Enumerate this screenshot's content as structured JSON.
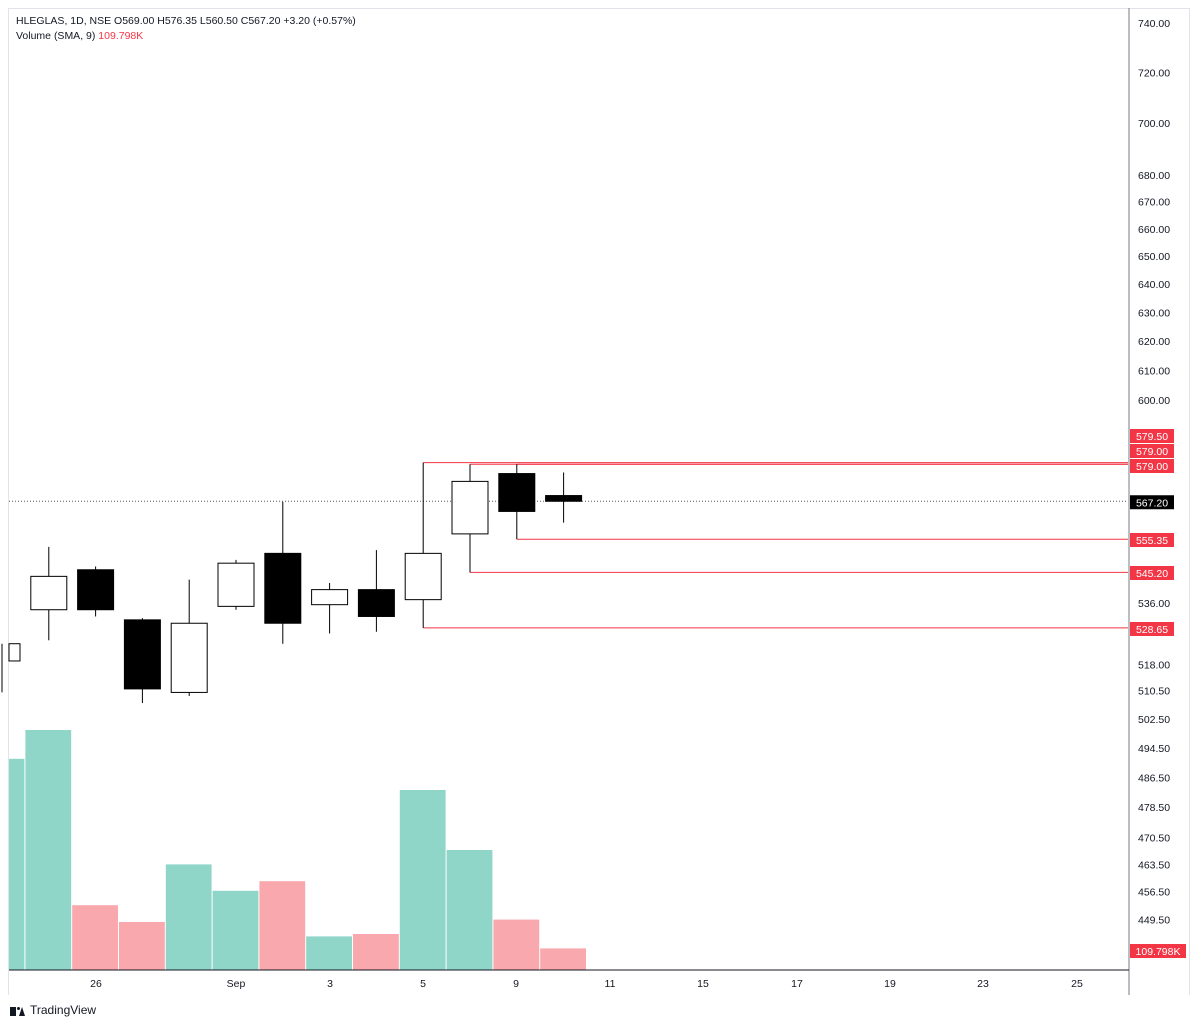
{
  "header": {
    "symbol_line": "HLEGLAS, 1D, NSE",
    "ohlc": [
      {
        "k": "O",
        "v": "569.00"
      },
      {
        "k": "H",
        "v": "576.35"
      },
      {
        "k": "L",
        "v": "560.50"
      },
      {
        "k": "C",
        "v": "567.20"
      }
    ],
    "change": "+3.20 (+0.57%)",
    "volume_label": "Volume (SMA, 9)",
    "volume_value": "109.798K"
  },
  "brand": "TradingView",
  "colors": {
    "up_volume": "#8fd6c9",
    "down_volume": "#f9a8ad",
    "level_line": "#f23645",
    "candle_down": "#000000",
    "candle_up": "#ffffff"
  },
  "chart_data": {
    "type": "candlestick",
    "price_axis": {
      "ticks": [
        "740.00",
        "720.00",
        "700.00",
        "680.00",
        "670.00",
        "660.00",
        "650.00",
        "640.00",
        "630.00",
        "620.00",
        "610.00",
        "600.00",
        "536.00",
        "518.00",
        "510.50",
        "502.50",
        "494.50",
        "486.50",
        "478.50",
        "470.50",
        "463.50",
        "456.50",
        "449.50"
      ],
      "scale": "log"
    },
    "time_axis": {
      "labels": [
        "26",
        "Sep",
        "3",
        "5",
        "9",
        "11",
        "15",
        "17",
        "19",
        "23",
        "25"
      ]
    },
    "candles": [
      {
        "o": 519.0,
        "h": 524.0,
        "l": 510.0,
        "c": 524.0
      },
      {
        "o": 534.0,
        "h": 553.0,
        "l": 525.0,
        "c": 544.0
      },
      {
        "o": 546.0,
        "h": 547.0,
        "l": 532.0,
        "c": 534.0
      },
      {
        "o": 531.0,
        "h": 531.5,
        "l": 507.0,
        "c": 511.0
      },
      {
        "o": 510.0,
        "h": 543.0,
        "l": 509.0,
        "c": 530.0
      },
      {
        "o": 535.0,
        "h": 549.0,
        "l": 534.0,
        "c": 548.0
      },
      {
        "o": 551.0,
        "h": 567.0,
        "l": 524.0,
        "c": 530.0
      },
      {
        "o": 535.5,
        "h": 542.0,
        "l": 527.0,
        "c": 540.0
      },
      {
        "o": 540.0,
        "h": 552.0,
        "l": 527.5,
        "c": 532.0
      },
      {
        "o": 537.0,
        "h": 579.5,
        "l": 528.65,
        "c": 551.0
      },
      {
        "o": 557.0,
        "h": 579.0,
        "l": 545.2,
        "c": 573.5
      },
      {
        "o": 576.0,
        "h": 579.0,
        "l": 555.35,
        "c": 564.0
      },
      {
        "o": 569.0,
        "h": 576.35,
        "l": 560.5,
        "c": 567.2
      }
    ],
    "volume": [
      {
        "v": 88,
        "dir": "up"
      },
      {
        "v": 100,
        "dir": "up"
      },
      {
        "v": 27,
        "dir": "down"
      },
      {
        "v": 20,
        "dir": "down"
      },
      {
        "v": 44,
        "dir": "up"
      },
      {
        "v": 33,
        "dir": "up"
      },
      {
        "v": 37,
        "dir": "down"
      },
      {
        "v": 14,
        "dir": "up"
      },
      {
        "v": 15,
        "dir": "down"
      },
      {
        "v": 75,
        "dir": "up"
      },
      {
        "v": 50,
        "dir": "up"
      },
      {
        "v": 21,
        "dir": "down"
      },
      {
        "v": 9,
        "dir": "down"
      }
    ],
    "last_price": {
      "value": 567.2,
      "label": "567.20"
    },
    "volume_label": "109.798K",
    "levels": [
      {
        "value": 579.5,
        "label": "579.50",
        "from_candle": 9
      },
      {
        "value": 579.0,
        "label": "579.00",
        "from_candle": 10
      },
      {
        "value": 579.0,
        "label": "579.00",
        "from_candle": 11
      },
      {
        "value": 555.35,
        "label": "555.35",
        "from_candle": 11
      },
      {
        "value": 545.2,
        "label": "545.20",
        "from_candle": 10
      },
      {
        "value": 528.65,
        "label": "528.65",
        "from_candle": 9
      }
    ]
  }
}
